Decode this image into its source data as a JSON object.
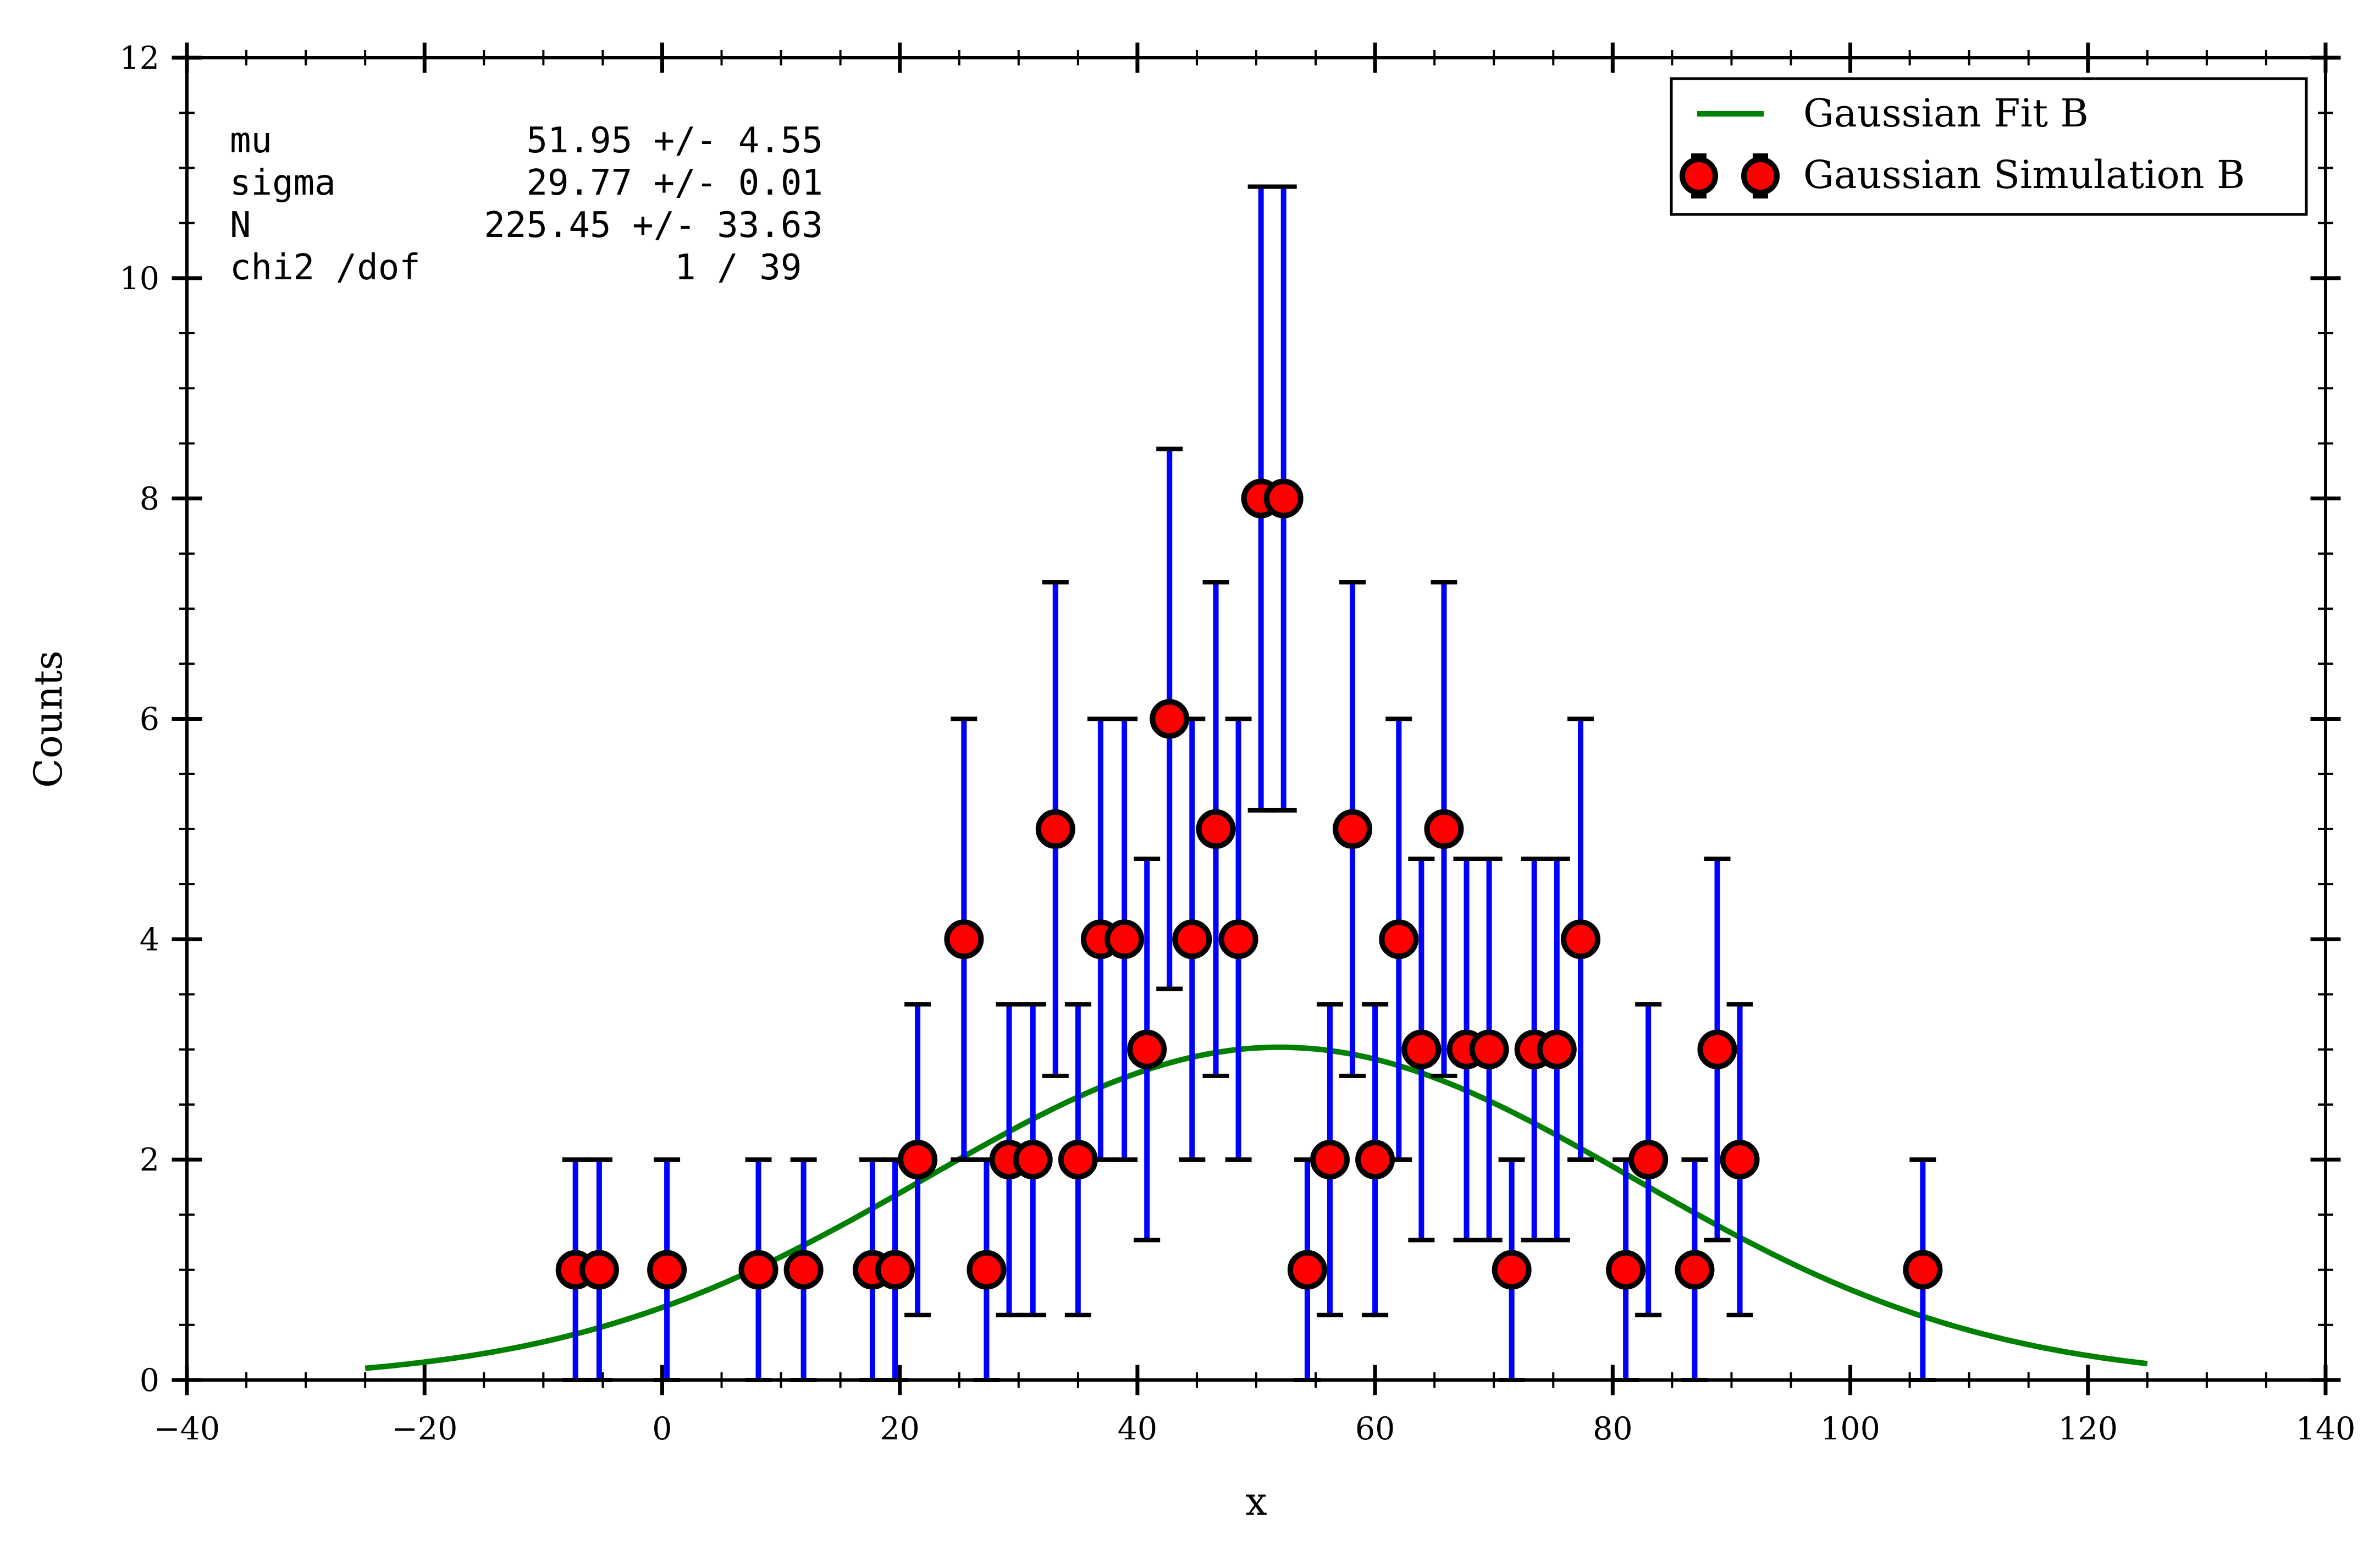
{
  "chart_data": {
    "type": "scatter",
    "xlabel": "x",
    "ylabel": "Counts",
    "xlim": [
      -40,
      140
    ],
    "ylim": [
      0,
      12
    ],
    "x_ticks": [
      -40,
      -20,
      0,
      20,
      40,
      60,
      80,
      100,
      120,
      140
    ],
    "y_ticks": [
      0,
      2,
      4,
      6,
      8,
      10,
      12
    ],
    "x_tick_labels": [
      "−40",
      "−20",
      "0",
      "20",
      "40",
      "60",
      "80",
      "100",
      "120",
      "140"
    ],
    "y_tick_labels": [
      "0",
      "2",
      "4",
      "6",
      "8",
      "10",
      "12"
    ],
    "grid": false,
    "legend_position": "top-right",
    "series": [
      {
        "name": "Gaussian Fit B",
        "kind": "line",
        "color": "#008000",
        "function": "gaussian",
        "mu": 51.95,
        "sigma": 29.77,
        "peak": 3.02,
        "x_range": [
          -25,
          125
        ]
      },
      {
        "name": "Gaussian Simulation B",
        "kind": "errorbar",
        "marker_color": "#ff0000",
        "errorbar_color": "#0000ff",
        "points": [
          {
            "x": -7.3,
            "y": 1,
            "err": 1
          },
          {
            "x": -5.3,
            "y": 1,
            "err": 1
          },
          {
            "x": 0.4,
            "y": 1,
            "err": 1
          },
          {
            "x": 8.1,
            "y": 1,
            "err": 1
          },
          {
            "x": 11.9,
            "y": 1,
            "err": 1
          },
          {
            "x": 17.7,
            "y": 1,
            "err": 1
          },
          {
            "x": 19.6,
            "y": 1,
            "err": 1
          },
          {
            "x": 21.5,
            "y": 2,
            "err": 1.41
          },
          {
            "x": 25.4,
            "y": 4,
            "err": 2
          },
          {
            "x": 27.3,
            "y": 1,
            "err": 1
          },
          {
            "x": 29.2,
            "y": 2,
            "err": 1.41
          },
          {
            "x": 31.2,
            "y": 2,
            "err": 1.41
          },
          {
            "x": 33.1,
            "y": 5,
            "err": 2.24
          },
          {
            "x": 35.0,
            "y": 2,
            "err": 1.41
          },
          {
            "x": 36.9,
            "y": 4,
            "err": 2
          },
          {
            "x": 38.9,
            "y": 4,
            "err": 2
          },
          {
            "x": 40.8,
            "y": 3,
            "err": 1.73
          },
          {
            "x": 42.7,
            "y": 6,
            "err": 2.45
          },
          {
            "x": 44.6,
            "y": 4,
            "err": 2
          },
          {
            "x": 46.6,
            "y": 5,
            "err": 2.24
          },
          {
            "x": 48.5,
            "y": 4,
            "err": 2
          },
          {
            "x": 50.4,
            "y": 8,
            "err": 2.83
          },
          {
            "x": 52.3,
            "y": 8,
            "err": 2.83
          },
          {
            "x": 54.3,
            "y": 1,
            "err": 1
          },
          {
            "x": 56.2,
            "y": 2,
            "err": 1.41
          },
          {
            "x": 58.1,
            "y": 5,
            "err": 2.24
          },
          {
            "x": 60.0,
            "y": 2,
            "err": 1.41
          },
          {
            "x": 62.0,
            "y": 4,
            "err": 2
          },
          {
            "x": 63.9,
            "y": 3,
            "err": 1.73
          },
          {
            "x": 65.8,
            "y": 5,
            "err": 2.24
          },
          {
            "x": 67.7,
            "y": 3,
            "err": 1.73
          },
          {
            "x": 69.6,
            "y": 3,
            "err": 1.73
          },
          {
            "x": 71.5,
            "y": 1,
            "err": 1
          },
          {
            "x": 73.4,
            "y": 3,
            "err": 1.73
          },
          {
            "x": 75.3,
            "y": 3,
            "err": 1.73
          },
          {
            "x": 77.3,
            "y": 4,
            "err": 2
          },
          {
            "x": 81.1,
            "y": 1,
            "err": 1
          },
          {
            "x": 83.0,
            "y": 2,
            "err": 1.41
          },
          {
            "x": 86.9,
            "y": 1,
            "err": 1
          },
          {
            "x": 88.8,
            "y": 3,
            "err": 1.73
          },
          {
            "x": 90.7,
            "y": 2,
            "err": 1.41
          },
          {
            "x": 106.1,
            "y": 1,
            "err": 1
          }
        ]
      }
    ],
    "annotations": {
      "stats_lines": [
        "mu            51.95 +/- 4.55",
        "sigma         29.77 +/- 0.01",
        "N           225.45 +/- 33.63",
        "chi2 /dof            1 / 39"
      ]
    }
  }
}
